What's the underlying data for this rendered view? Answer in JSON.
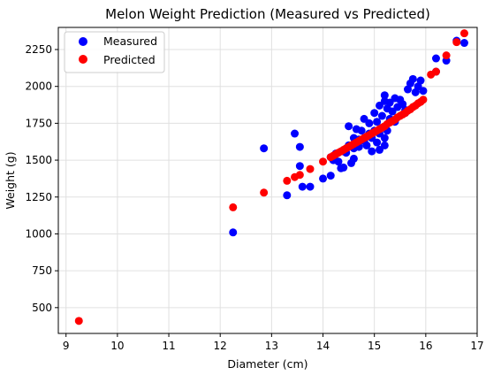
{
  "chart_data": {
    "type": "scatter",
    "title": "Melon Weight Prediction (Measured vs Predicted)",
    "xlabel": "Diameter (cm)",
    "ylabel": "Weight (g)",
    "xlim": [
      8.85,
      17.0
    ],
    "ylim": [
      325,
      2400
    ],
    "x_ticks": [
      9,
      10,
      11,
      12,
      13,
      14,
      15,
      16,
      17
    ],
    "y_ticks": [
      500,
      750,
      1000,
      1250,
      1500,
      1750,
      2000,
      2250
    ],
    "grid": true,
    "legend_position": "top-left",
    "series": [
      {
        "name": "Measured",
        "color": "#0000ff",
        "points": [
          [
            12.25,
            1010
          ],
          [
            12.85,
            1580
          ],
          [
            13.3,
            1262
          ],
          [
            13.45,
            1680
          ],
          [
            13.55,
            1590
          ],
          [
            13.55,
            1460
          ],
          [
            13.6,
            1320
          ],
          [
            13.75,
            1320
          ],
          [
            14.0,
            1375
          ],
          [
            14.15,
            1395
          ],
          [
            14.15,
            1520
          ],
          [
            14.2,
            1500
          ],
          [
            14.25,
            1545
          ],
          [
            14.3,
            1490
          ],
          [
            14.35,
            1445
          ],
          [
            14.4,
            1450
          ],
          [
            14.4,
            1560
          ],
          [
            14.45,
            1550
          ],
          [
            14.5,
            1730
          ],
          [
            14.5,
            1600
          ],
          [
            14.55,
            1480
          ],
          [
            14.6,
            1510
          ],
          [
            14.6,
            1580
          ],
          [
            14.6,
            1650
          ],
          [
            14.65,
            1710
          ],
          [
            14.7,
            1590
          ],
          [
            14.7,
            1640
          ],
          [
            14.75,
            1700
          ],
          [
            14.8,
            1630
          ],
          [
            14.8,
            1780
          ],
          [
            14.85,
            1600
          ],
          [
            14.9,
            1680
          ],
          [
            14.9,
            1750
          ],
          [
            14.95,
            1560
          ],
          [
            14.95,
            1650
          ],
          [
            15.0,
            1700
          ],
          [
            15.0,
            1820
          ],
          [
            15.05,
            1620
          ],
          [
            15.05,
            1760
          ],
          [
            15.1,
            1680
          ],
          [
            15.1,
            1870
          ],
          [
            15.15,
            1720
          ],
          [
            15.15,
            1800
          ],
          [
            15.2,
            1650
          ],
          [
            15.2,
            1940
          ],
          [
            15.2,
            1900
          ],
          [
            15.25,
            1700
          ],
          [
            15.25,
            1850
          ],
          [
            15.3,
            1780
          ],
          [
            15.3,
            1890
          ],
          [
            15.35,
            1830
          ],
          [
            15.4,
            1760
          ],
          [
            15.4,
            1920
          ],
          [
            15.45,
            1860
          ],
          [
            15.5,
            1910
          ],
          [
            15.55,
            1880
          ],
          [
            15.6,
            1820
          ],
          [
            15.6,
            1840
          ],
          [
            15.65,
            1980
          ],
          [
            15.7,
            2020
          ],
          [
            15.75,
            2050
          ],
          [
            15.8,
            1960
          ],
          [
            15.85,
            2000
          ],
          [
            15.9,
            2040
          ],
          [
            15.95,
            1970
          ],
          [
            16.2,
            2100
          ],
          [
            16.2,
            2190
          ],
          [
            16.4,
            2175
          ],
          [
            16.6,
            2310
          ],
          [
            16.75,
            2295
          ],
          [
            15.2,
            1600
          ],
          [
            15.1,
            1570
          ]
        ]
      },
      {
        "name": "Predicted",
        "color": "#ff0000",
        "points": [
          [
            9.25,
            410
          ],
          [
            12.25,
            1180
          ],
          [
            12.85,
            1280
          ],
          [
            13.3,
            1360
          ],
          [
            13.45,
            1385
          ],
          [
            13.55,
            1400
          ],
          [
            13.75,
            1440
          ],
          [
            14.0,
            1490
          ],
          [
            14.15,
            1520
          ],
          [
            14.2,
            1530
          ],
          [
            14.25,
            1540
          ],
          [
            14.3,
            1550
          ],
          [
            14.35,
            1560
          ],
          [
            14.4,
            1570
          ],
          [
            14.45,
            1580
          ],
          [
            14.5,
            1590
          ],
          [
            14.55,
            1600
          ],
          [
            14.6,
            1610
          ],
          [
            14.65,
            1620
          ],
          [
            14.7,
            1630
          ],
          [
            14.75,
            1640
          ],
          [
            14.8,
            1650
          ],
          [
            14.85,
            1660
          ],
          [
            14.9,
            1670
          ],
          [
            14.95,
            1680
          ],
          [
            15.0,
            1690
          ],
          [
            15.05,
            1700
          ],
          [
            15.1,
            1710
          ],
          [
            15.15,
            1720
          ],
          [
            15.2,
            1730
          ],
          [
            15.25,
            1745
          ],
          [
            15.3,
            1755
          ],
          [
            15.35,
            1765
          ],
          [
            15.4,
            1775
          ],
          [
            15.45,
            1790
          ],
          [
            15.5,
            1800
          ],
          [
            15.55,
            1810
          ],
          [
            15.6,
            1820
          ],
          [
            15.65,
            1835
          ],
          [
            15.7,
            1845
          ],
          [
            15.75,
            1860
          ],
          [
            15.8,
            1870
          ],
          [
            15.85,
            1885
          ],
          [
            15.9,
            1895
          ],
          [
            15.95,
            1910
          ],
          [
            16.1,
            2080
          ],
          [
            16.2,
            2100
          ],
          [
            16.4,
            2210
          ],
          [
            16.6,
            2300
          ],
          [
            16.75,
            2360
          ]
        ]
      }
    ]
  }
}
